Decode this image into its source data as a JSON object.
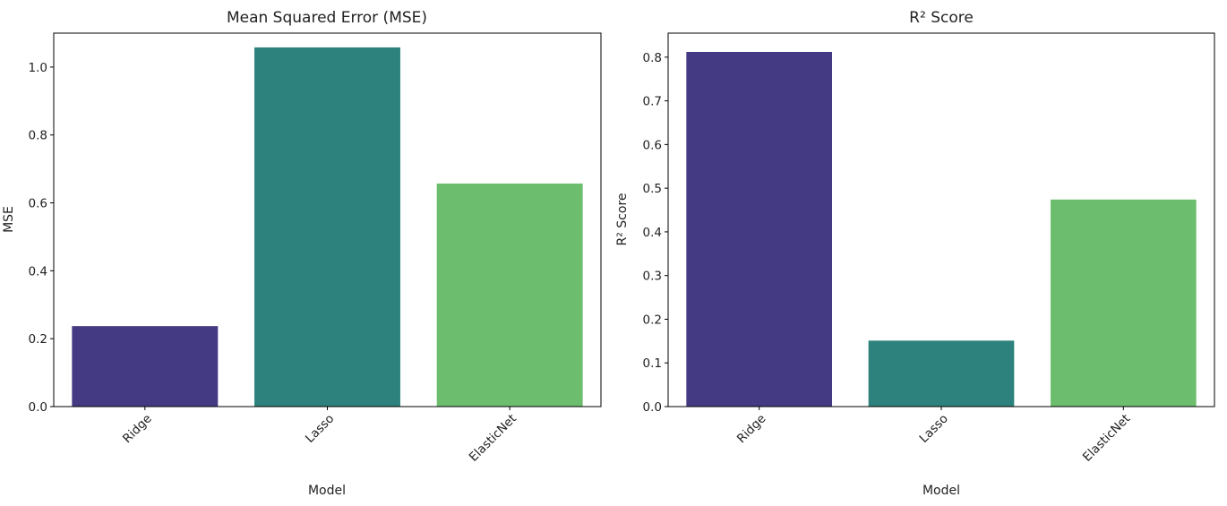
{
  "chart_data": [
    {
      "type": "bar",
      "title": "Mean Squared Error (MSE)",
      "xlabel": "Model",
      "ylabel": "MSE",
      "categories": [
        "Ridge",
        "Lasso",
        "ElasticNet"
      ],
      "values": [
        0.237,
        1.058,
        0.657
      ],
      "colors": [
        "#443983",
        "#2e827d",
        "#6cbd6e"
      ],
      "ylim": [
        0,
        1.1
      ],
      "yticks": [
        0.0,
        0.2,
        0.4,
        0.6,
        0.8,
        1.0
      ],
      "ytick_labels": [
        "0.0",
        "0.2",
        "0.4",
        "0.6",
        "0.8",
        "1.0"
      ],
      "grid": false
    },
    {
      "type": "bar",
      "title": "R² Score",
      "xlabel": "Model",
      "ylabel": "R² Score",
      "categories": [
        "Ridge",
        "Lasso",
        "ElasticNet"
      ],
      "values": [
        0.812,
        0.151,
        0.474
      ],
      "colors": [
        "#443983",
        "#2e827d",
        "#6cbd6e"
      ],
      "ylim": [
        0,
        0.855
      ],
      "yticks": [
        0.0,
        0.1,
        0.2,
        0.3,
        0.4,
        0.5,
        0.6,
        0.7,
        0.8
      ],
      "ytick_labels": [
        "0.0",
        "0.1",
        "0.2",
        "0.3",
        "0.4",
        "0.5",
        "0.6",
        "0.7",
        "0.8"
      ],
      "grid": false
    }
  ]
}
